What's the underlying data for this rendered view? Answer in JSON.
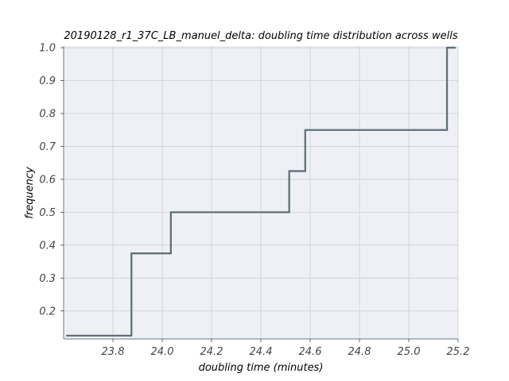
{
  "chart_data": {
    "type": "line",
    "drawstyle": "steps-post",
    "title": "20190128_r1_37C_LB_manuel_delta: doubling time distribution across wells",
    "xlabel": "doubling time (minutes)",
    "ylabel": "frequency",
    "xlim": [
      23.6,
      25.2
    ],
    "ylim": [
      0.115,
      1.005
    ],
    "xticks": [
      "23.8",
      "24.0",
      "24.2",
      "24.4",
      "24.6",
      "24.8",
      "25.0",
      "25.2"
    ],
    "yticks": [
      "0.2",
      "0.3",
      "0.4",
      "0.5",
      "0.6",
      "0.7",
      "0.8",
      "0.9",
      "1.0"
    ],
    "grid": true,
    "series": [
      {
        "color": "#5f7079",
        "x": [
          23.61,
          23.875,
          24.035,
          24.515,
          24.58,
          25.155,
          25.19
        ],
        "y": [
          0.125,
          0.375,
          0.5,
          0.625,
          0.75,
          1.0,
          1.0
        ]
      }
    ]
  },
  "colors": {
    "plot_background": "#eff0f5",
    "grid": "#cdd0d6",
    "line": "#5f7079"
  }
}
